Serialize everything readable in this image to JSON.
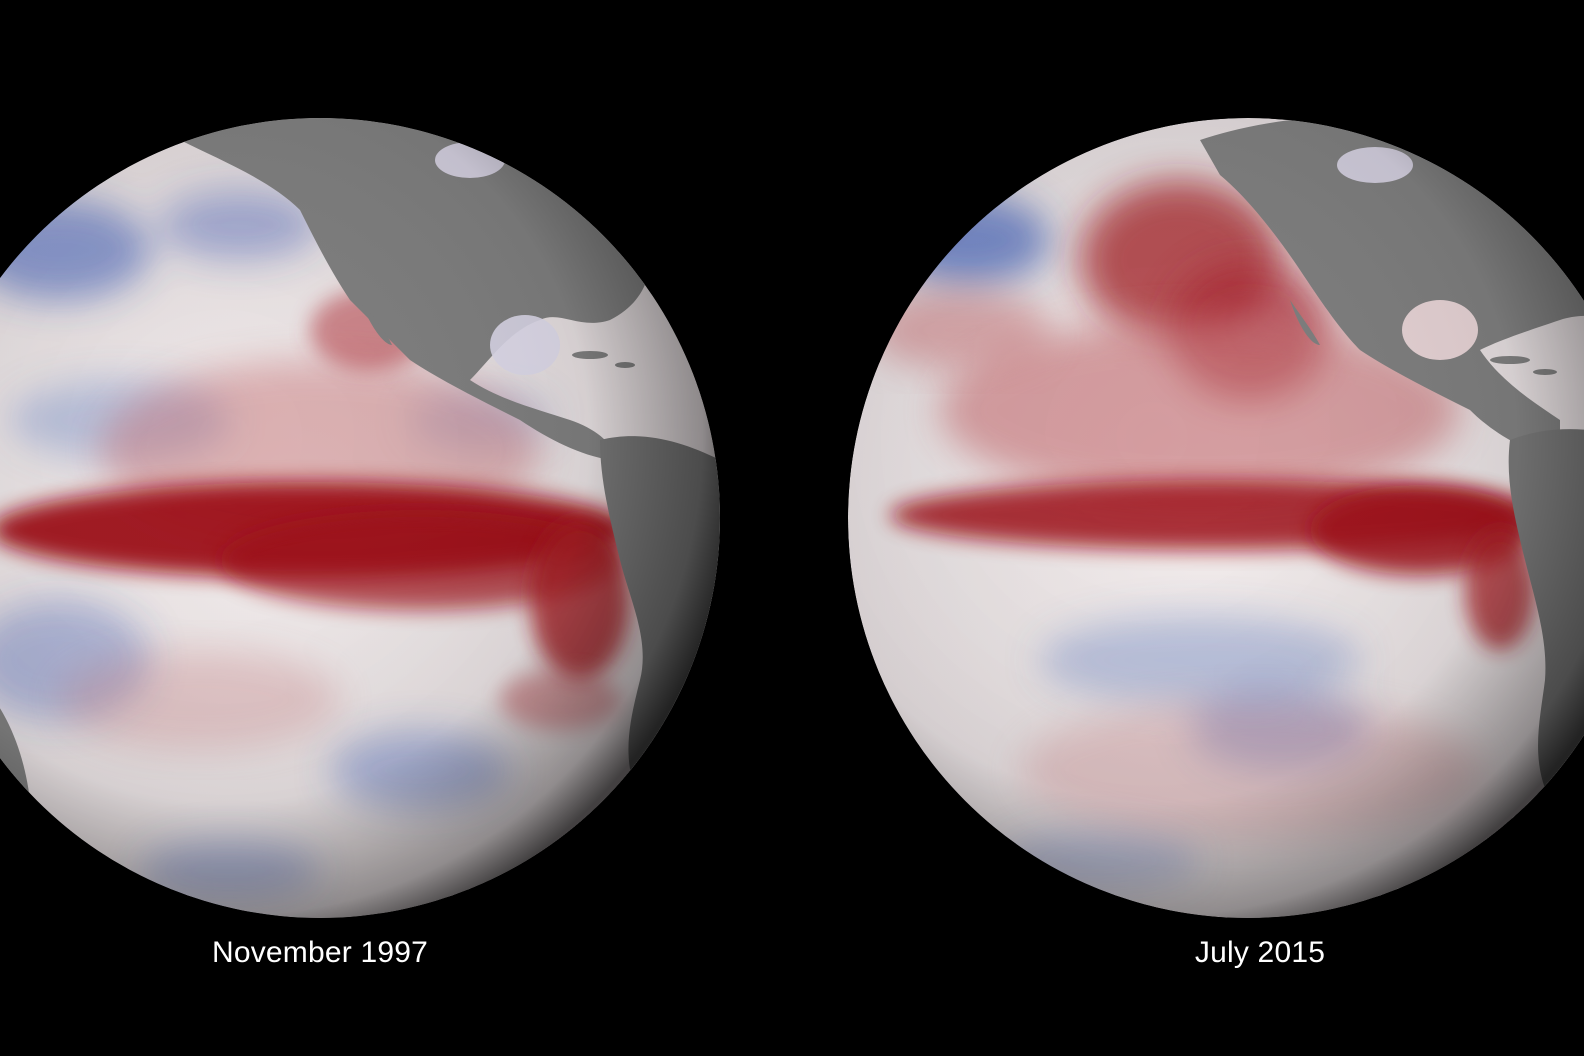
{
  "captions": {
    "left": "November 1997",
    "right": "July 2015"
  },
  "colors": {
    "background": "#000000",
    "ocean_neutral": "#ece6e6",
    "warm_anomaly": "#9b0f17",
    "cool_anomaly": "#3c5ab4",
    "land": "#7c7c7c",
    "caption_text": "#ffffff"
  }
}
